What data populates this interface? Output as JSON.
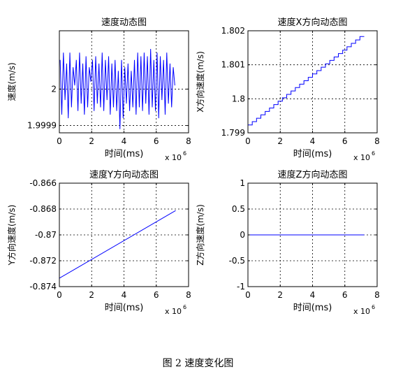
{
  "figure_caption": "图 2  速度变化图",
  "chart_data": [
    {
      "type": "line",
      "title": "速度动态图",
      "xlabel": "时间(ms)",
      "ylabel": "速度(m/s)",
      "x_multiplier": "x 10",
      "x_multiplier_exp": "6",
      "xlim": [
        0,
        8
      ],
      "ylim": [
        1.99988,
        2.00016
      ],
      "xticks": [
        0,
        2,
        4,
        6,
        8
      ],
      "yticks": [
        1.9999,
        2
      ],
      "ytick_labels": [
        "1.9999",
        "2"
      ],
      "grid": true,
      "color": "#0000ff",
      "series": [
        {
          "x": [
            0.05,
            0.15,
            0.25,
            0.35,
            0.45,
            0.55,
            0.65,
            0.75,
            0.85,
            0.95,
            1.05,
            1.15,
            1.25,
            1.35,
            1.45,
            1.55,
            1.65,
            1.75,
            1.85,
            1.95,
            2.05,
            2.15,
            2.25,
            2.35,
            2.45,
            2.55,
            2.65,
            2.75,
            2.85,
            2.95,
            3.05,
            3.15,
            3.25,
            3.35,
            3.45,
            3.55,
            3.65,
            3.75,
            3.85,
            3.95,
            4.05,
            4.15,
            4.25,
            4.35,
            4.45,
            4.55,
            4.65,
            4.75,
            4.85,
            4.95,
            5.05,
            5.15,
            5.25,
            5.35,
            5.45,
            5.55,
            5.65,
            5.75,
            5.85,
            5.95,
            6.05,
            6.15,
            6.25,
            6.35,
            6.45,
            6.55,
            6.65,
            6.75,
            6.85,
            6.95,
            7.05,
            7.15
          ],
          "y": [
            2.00008,
            1.99993,
            2.0001,
            1.99997,
            2.00007,
            1.99992,
            2.0001,
            1.99995,
            2.00006,
            2.00001,
            2.00008,
            1.99994,
            2.0001,
            1.99996,
            2.00007,
            1.99993,
            2.00009,
            1.99995,
            2.00006,
            2.00002,
            2.00008,
            1.99994,
            2.00009,
            1.99996,
            2.00007,
            1.99995,
            2.0001,
            1.99994,
            2.00008,
            1.99997,
            2.00009,
            1.99993,
            2.00007,
            1.99995,
            2.00008,
            1.99994,
            2.00005,
            1.99989,
            2.00008,
            1.99992,
            2.00006,
            1.99996,
            2.00007,
            1.99994,
            2.00005,
            1.99995,
            2.00008,
            1.99993,
            2.0001,
            1.99995,
            2.00009,
            1.99994,
            2.0001,
            1.99996,
            2.00009,
            1.99993,
            2.00011,
            1.99995,
            2.00008,
            1.99994,
            2.0001,
            1.99992,
            2.00009,
            1.99997,
            2.00008,
            1.99993,
            2.0001,
            1.99996,
            2.00007,
            1.99995,
            2.00006,
            2.00001
          ]
        }
      ]
    },
    {
      "type": "line",
      "title": "速度X方向动态图",
      "xlabel": "时间(ms)",
      "ylabel": "X方向速度(m/s)",
      "x_multiplier": "x 10",
      "x_multiplier_exp": "6",
      "xlim": [
        0,
        8
      ],
      "ylim": [
        1.799,
        1.802
      ],
      "xticks": [
        0,
        2,
        4,
        6,
        8
      ],
      "yticks": [
        1.799,
        1.8,
        1.801,
        1.802
      ],
      "ytick_labels": [
        "1.799",
        "1.8",
        "1.801",
        "1.802"
      ],
      "grid": true,
      "color": "#0000ff",
      "series": [
        {
          "x": [
            0,
            7.2
          ],
          "y": [
            1.79923,
            1.80183
          ],
          "step": 0.0001
        }
      ]
    },
    {
      "type": "line",
      "title": "速度Y方向动态图",
      "xlabel": "时间(ms)",
      "ylabel": "Y方向速度(m/s)",
      "x_multiplier": "x 10",
      "x_multiplier_exp": "6",
      "xlim": [
        0,
        8
      ],
      "ylim": [
        -0.874,
        -0.866
      ],
      "xticks": [
        0,
        2,
        4,
        6,
        8
      ],
      "yticks": [
        -0.874,
        -0.872,
        -0.87,
        -0.868,
        -0.866
      ],
      "ytick_labels": [
        "-0.874",
        "-0.872",
        "-0.87",
        "-0.868",
        "-0.866"
      ],
      "grid": true,
      "color": "#0000ff",
      "series": [
        {
          "x": [
            0,
            7.2
          ],
          "y": [
            -0.87335,
            -0.86812
          ]
        }
      ]
    },
    {
      "type": "line",
      "title": "速度Z方向动态图",
      "xlabel": "时间(ms)",
      "ylabel": "Z方向速度(m/s)",
      "x_multiplier": "x 10",
      "x_multiplier_exp": "6",
      "xlim": [
        0,
        8
      ],
      "ylim": [
        -1,
        1
      ],
      "xticks": [
        0,
        2,
        4,
        6,
        8
      ],
      "yticks": [
        -1,
        -0.5,
        0,
        0.5,
        1
      ],
      "ytick_labels": [
        "-1",
        "-0.5",
        "0",
        "0.5",
        "1"
      ],
      "grid": true,
      "color": "#0000ff",
      "series": [
        {
          "x": [
            0,
            7.2
          ],
          "y": [
            0,
            0
          ]
        }
      ]
    }
  ]
}
